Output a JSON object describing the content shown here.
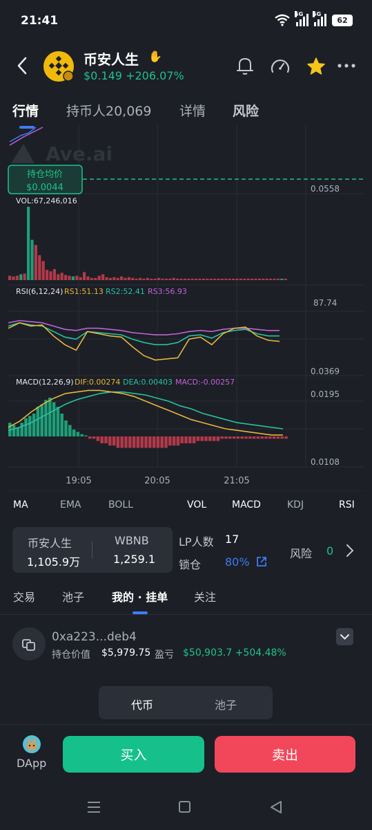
{
  "status": {
    "time": "21:41",
    "net1": "5G",
    "net2": "5G",
    "battery": "62"
  },
  "header": {
    "name": "币安人生",
    "price": "$0.149",
    "change": "+206.07%"
  },
  "tabs": [
    "行情",
    "持币人20,069",
    "详情",
    "风险"
  ],
  "chart": {
    "watermark": "Ave.ai",
    "avg_label": "持仓均价",
    "avg_value": "$0.0044",
    "price_right": "0.0558",
    "vol_label": "VOL:67,246,016",
    "rsi_label": "RSI(6,12,24)",
    "rsi1": "RS1:51.13",
    "rsi2": "RS2:52.41",
    "rsi3": "RS3:56.93",
    "rsi_high": "87.74",
    "rsi_low": "0.0369",
    "macd_label": "MACD(12,26,9)",
    "dif": "DIF:0.00274",
    "dea": "DEA:0.00403",
    "macd": "MACD:-0.00257",
    "macd_high": "0.0195",
    "macd_low": "0.0108",
    "times": [
      "19:05",
      "20:05",
      "21:05"
    ],
    "colors": {
      "up": "#1f9e78",
      "down": "#b2394a",
      "dif": "#e5b73b",
      "dea": "#27c2a2",
      "rs1": "#e5b73b",
      "rs2": "#27c2a2",
      "rs3": "#c063d8"
    }
  },
  "chart_data": {
    "type": "bar",
    "volume_bars": [
      {
        "v": 6,
        "up": false
      },
      {
        "v": 5,
        "up": false
      },
      {
        "v": 6,
        "up": false
      },
      {
        "v": 8,
        "up": true
      },
      {
        "v": 9,
        "up": false
      },
      {
        "v": 100,
        "up": true
      },
      {
        "v": 55,
        "up": true
      },
      {
        "v": 48,
        "up": false
      },
      {
        "v": 34,
        "up": false
      },
      {
        "v": 26,
        "up": false
      },
      {
        "v": 14,
        "up": false
      },
      {
        "v": 12,
        "up": false
      },
      {
        "v": 15,
        "up": false
      },
      {
        "v": 8,
        "up": false
      },
      {
        "v": 10,
        "up": false
      },
      {
        "v": 7,
        "up": false
      },
      {
        "v": 6,
        "up": false
      },
      {
        "v": 5,
        "up": true
      },
      {
        "v": 6,
        "up": false
      },
      {
        "v": 4,
        "up": false
      },
      {
        "v": 11,
        "up": false
      },
      {
        "v": 5,
        "up": false
      },
      {
        "v": 3,
        "up": false
      },
      {
        "v": 3,
        "up": false
      },
      {
        "v": 6,
        "up": false
      },
      {
        "v": 8,
        "up": false
      },
      {
        "v": 4,
        "up": false
      },
      {
        "v": 3,
        "up": false
      },
      {
        "v": 4,
        "up": false
      },
      {
        "v": 3,
        "up": false
      },
      {
        "v": 5,
        "up": false
      },
      {
        "v": 3,
        "up": false
      },
      {
        "v": 4,
        "up": false
      },
      {
        "v": 3,
        "up": false
      },
      {
        "v": 2,
        "up": false
      },
      {
        "v": 3,
        "up": false
      },
      {
        "v": 2,
        "up": false
      },
      {
        "v": 3,
        "up": false
      },
      {
        "v": 2,
        "up": false
      },
      {
        "v": 2,
        "up": false
      },
      {
        "v": 3,
        "up": false
      },
      {
        "v": 2,
        "up": false
      },
      {
        "v": 2,
        "up": false
      },
      {
        "v": 2,
        "up": false
      },
      {
        "v": 3,
        "up": false
      },
      {
        "v": 2,
        "up": false
      },
      {
        "v": 2,
        "up": false
      },
      {
        "v": 2,
        "up": false
      },
      {
        "v": 2,
        "up": false
      },
      {
        "v": 2,
        "up": false
      },
      {
        "v": 2,
        "up": false
      },
      {
        "v": 2,
        "up": false
      },
      {
        "v": 2,
        "up": false
      },
      {
        "v": 2,
        "up": false
      },
      {
        "v": 2,
        "up": false
      },
      {
        "v": 2,
        "up": false
      },
      {
        "v": 2,
        "up": false
      },
      {
        "v": 2,
        "up": false
      },
      {
        "v": 2,
        "up": false
      },
      {
        "v": 2,
        "up": false
      },
      {
        "v": 2,
        "up": false
      },
      {
        "v": 2,
        "up": false
      },
      {
        "v": 2,
        "up": false
      },
      {
        "v": 2,
        "up": false
      },
      {
        "v": 2,
        "up": false
      },
      {
        "v": 2,
        "up": false
      },
      {
        "v": 2,
        "up": false
      },
      {
        "v": 2,
        "up": false
      },
      {
        "v": 2,
        "up": false
      },
      {
        "v": 2,
        "up": false
      },
      {
        "v": 2,
        "up": false
      },
      {
        "v": 2,
        "up": false
      },
      {
        "v": 2,
        "up": false
      },
      {
        "v": 2,
        "up": true
      },
      {
        "v": 2,
        "up": false
      }
    ],
    "macd_hist": [
      6,
      5,
      4,
      6,
      8,
      9,
      10,
      13,
      14,
      16,
      17,
      15,
      13,
      10,
      7,
      5,
      3,
      2,
      1,
      0,
      -1,
      -1,
      -2,
      -3,
      -3,
      -4,
      -4,
      -5,
      -5,
      -5,
      -5,
      -5,
      -5,
      -5,
      -5,
      -5,
      -5,
      -5,
      -5,
      -5,
      -4,
      -4,
      -4,
      -3,
      -3,
      -3,
      -3,
      -2,
      -2,
      -2,
      -2,
      -2,
      -2,
      -1,
      -1,
      -1,
      -1,
      -1,
      -1,
      -1,
      -1,
      -1,
      -1,
      -1,
      -1,
      -1,
      -1,
      -1,
      -1,
      -1
    ],
    "dif": [
      10,
      14,
      20,
      25,
      29,
      32,
      33,
      34,
      34,
      33,
      32,
      30,
      27,
      24,
      21,
      18,
      15,
      13,
      11,
      9,
      8,
      7,
      6,
      5,
      5
    ],
    "dea": [
      8,
      10,
      13,
      17,
      21,
      25,
      28,
      30,
      32,
      33,
      33,
      32,
      31,
      29,
      27,
      24,
      22,
      19,
      17,
      15,
      13,
      12,
      11,
      10,
      9
    ],
    "rs1": [
      55,
      60,
      57,
      58,
      48,
      40,
      35,
      52,
      50,
      48,
      47,
      38,
      30,
      26,
      27,
      28,
      45,
      47,
      40,
      50,
      55,
      56,
      48,
      44,
      43
    ],
    "rs2": [
      57,
      60,
      58,
      57,
      52,
      47,
      45,
      52,
      51,
      50,
      49,
      45,
      42,
      40,
      40,
      42,
      48,
      49,
      46,
      51,
      53,
      54,
      50,
      48,
      48
    ],
    "rs3": [
      60,
      62,
      61,
      60,
      57,
      54,
      53,
      55,
      55,
      54,
      53,
      51,
      50,
      49,
      49,
      50,
      52,
      53,
      52,
      54,
      55,
      55,
      54,
      53,
      53
    ]
  },
  "indicators": [
    "MA",
    "EMA",
    "BOLL",
    "VOL",
    "MACD",
    "KDJ",
    "RSI"
  ],
  "pair": {
    "base_name": "币安人生",
    "base_amount": "1,105.9万",
    "quote_name": "WBNB",
    "quote_amount": "1,259.1",
    "lp_label": "LP人数",
    "lp_count": "17",
    "lock_label": "锁仓",
    "lock_value": "80%",
    "risk_label": "风险",
    "risk_value": "0"
  },
  "subtabs": [
    "交易",
    "池子",
    "我的 · 挂单",
    "关注"
  ],
  "wallet": {
    "address": "0xa223...deb4",
    "hold_label": "持仓价值",
    "hold_value": "$5,979.75",
    "pnl_label": "盈亏",
    "pnl_value": "$50,903.7 +504.48%"
  },
  "segment": {
    "token": "代币",
    "pool": "池子"
  },
  "bottom": {
    "dapp": "DApp",
    "buy": "买入",
    "sell": "卖出"
  }
}
